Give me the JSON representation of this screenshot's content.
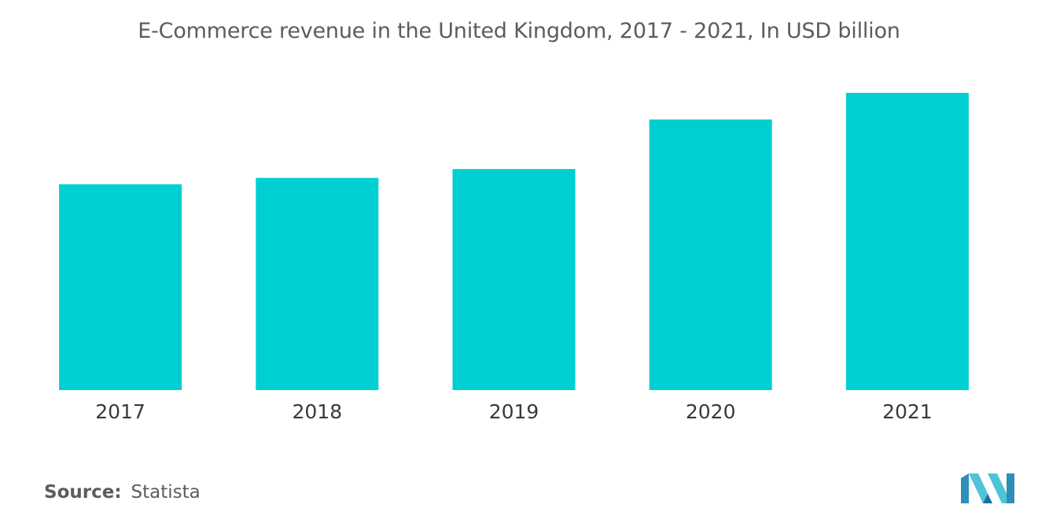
{
  "chart_data": {
    "type": "bar",
    "title": "E-Commerce revenue in the United Kingdom, 2017 - 2021, In USD billion",
    "xlabel": "",
    "ylabel": "",
    "categories": [
      "2017",
      "2018",
      "2019",
      "2020",
      "2021"
    ],
    "values": [
      81,
      83.5,
      87,
      106.5,
      117
    ],
    "ylim": [
      0,
      130
    ],
    "grid": false,
    "legend": "none",
    "bar_color": "#00cfd1"
  },
  "source": {
    "label": "Source:",
    "value": "Statista"
  },
  "logo": {
    "icon": "mordor-intelligence-logo-icon",
    "colors": [
      "#2d8fb8",
      "#4fc3d8",
      "#1f6f9c"
    ]
  }
}
